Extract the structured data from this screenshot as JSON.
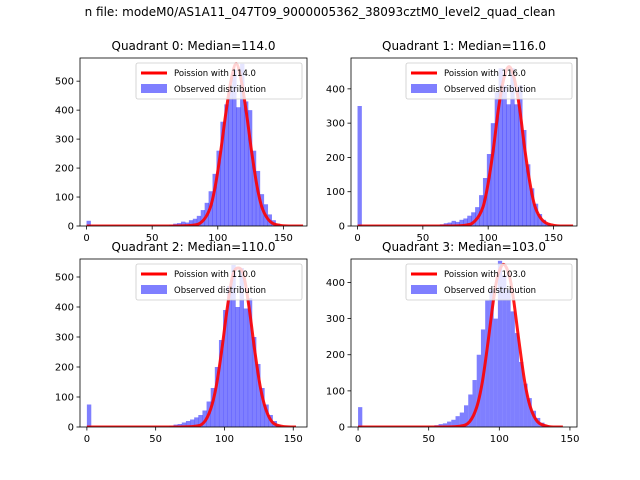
{
  "suptitle": "n file: modeM0/AS1A11_047T09_9000005362_38093cztM0_level2_quad_clean",
  "chart_data": [
    {
      "type": "bar",
      "title": "Quadrant 0: Median=114.0",
      "xlabel": "",
      "ylabel": "",
      "xlim": [
        -5,
        168
      ],
      "ylim": [
        0,
        580
      ],
      "xticks": [
        0,
        50,
        100,
        150
      ],
      "yticks": [
        0,
        100,
        200,
        300,
        400,
        500
      ],
      "grid": false,
      "legend_position": "top-right",
      "series": [
        {
          "name": "Poission with 114.0",
          "type": "line",
          "color": "#ff0000",
          "x": [
            0,
            60,
            80,
            88,
            94,
            98,
            102,
            106,
            110,
            114,
            118,
            122,
            126,
            130,
            134,
            140,
            148,
            160,
            165
          ],
          "values": [
            0,
            0,
            2,
            15,
            60,
            135,
            250,
            385,
            500,
            560,
            500,
            385,
            250,
            135,
            60,
            15,
            2,
            0,
            0
          ]
        },
        {
          "name": "Observed distribution",
          "type": "histogram",
          "color": "#0000ff",
          "alpha": 0.5,
          "bin_width": 3.3,
          "x": [
            0,
            63,
            66,
            69,
            72,
            75,
            78,
            81,
            84,
            87,
            90,
            93,
            96,
            99,
            102,
            105,
            108,
            111,
            114,
            117,
            120,
            123,
            126,
            129,
            132,
            135,
            138,
            141,
            144
          ],
          "values": [
            18,
            5,
            8,
            10,
            15,
            12,
            20,
            25,
            35,
            55,
            80,
            120,
            180,
            260,
            360,
            420,
            470,
            540,
            410,
            560,
            430,
            400,
            260,
            190,
            110,
            75,
            40,
            20,
            8
          ]
        }
      ]
    },
    {
      "type": "bar",
      "title": "Quadrant 1: Median=116.0",
      "xlabel": "",
      "ylabel": "",
      "xlim": [
        -5,
        168
      ],
      "ylim": [
        0,
        490
      ],
      "xticks": [
        0,
        50,
        100,
        150
      ],
      "yticks": [
        0,
        100,
        200,
        300,
        400
      ],
      "grid": false,
      "legend_position": "top-right",
      "series": [
        {
          "name": "Poission with 116.0",
          "type": "line",
          "color": "#ff0000",
          "x": [
            0,
            60,
            82,
            90,
            96,
            100,
            104,
            108,
            112,
            116,
            120,
            124,
            128,
            132,
            136,
            142,
            150,
            160,
            165
          ],
          "values": [
            0,
            0,
            2,
            15,
            55,
            125,
            225,
            345,
            430,
            465,
            430,
            345,
            225,
            125,
            55,
            15,
            2,
            0,
            0
          ]
        },
        {
          "name": "Observed distribution",
          "type": "histogram",
          "color": "#0000ff",
          "alpha": 0.5,
          "bin_width": 3.3,
          "x": [
            0,
            63,
            66,
            69,
            72,
            75,
            78,
            81,
            84,
            87,
            90,
            93,
            96,
            99,
            102,
            105,
            108,
            111,
            114,
            117,
            120,
            123,
            126,
            129,
            132,
            135,
            138,
            141,
            144
          ],
          "values": [
            350,
            5,
            8,
            10,
            15,
            12,
            18,
            22,
            30,
            40,
            55,
            90,
            140,
            210,
            300,
            390,
            460,
            410,
            355,
            460,
            355,
            410,
            280,
            180,
            110,
            65,
            35,
            18,
            8
          ]
        }
      ]
    },
    {
      "type": "bar",
      "title": "Quadrant 2: Median=110.0",
      "xlabel": "",
      "ylabel": "",
      "xlim": [
        -5,
        160
      ],
      "ylim": [
        0,
        560
      ],
      "xticks": [
        0,
        50,
        100,
        150
      ],
      "yticks": [
        0,
        100,
        200,
        300,
        400,
        500
      ],
      "grid": false,
      "legend_position": "top-right",
      "series": [
        {
          "name": "Poission with 110.0",
          "type": "line",
          "color": "#ff0000",
          "x": [
            0,
            60,
            78,
            85,
            90,
            94,
            98,
            102,
            106,
            110,
            114,
            118,
            122,
            126,
            130,
            135,
            142,
            150,
            152
          ],
          "values": [
            0,
            0,
            2,
            15,
            60,
            135,
            255,
            395,
            505,
            530,
            505,
            395,
            255,
            135,
            60,
            15,
            2,
            0,
            0
          ]
        },
        {
          "name": "Observed distribution",
          "type": "histogram",
          "color": "#0000ff",
          "alpha": 0.5,
          "bin_width": 3.2,
          "x": [
            0,
            60,
            63,
            66,
            69,
            72,
            75,
            78,
            81,
            84,
            87,
            90,
            93,
            96,
            99,
            102,
            105,
            108,
            111,
            114,
            117,
            120,
            123,
            126,
            129,
            132,
            135,
            138
          ],
          "values": [
            75,
            5,
            8,
            10,
            15,
            20,
            25,
            32,
            40,
            55,
            85,
            130,
            200,
            290,
            390,
            470,
            540,
            400,
            530,
            395,
            430,
            300,
            210,
            130,
            75,
            40,
            20,
            8
          ]
        }
      ]
    },
    {
      "type": "bar",
      "title": "Quadrant 3: Median=103.0",
      "xlabel": "",
      "ylabel": "",
      "xlim": [
        -5,
        155
      ],
      "ylim": [
        0,
        465
      ],
      "xticks": [
        0,
        50,
        100,
        150
      ],
      "yticks": [
        0,
        100,
        200,
        300,
        400
      ],
      "grid": false,
      "legend_position": "top-right",
      "series": [
        {
          "name": "Poission with 103.0",
          "type": "line",
          "color": "#ff0000",
          "x": [
            0,
            55,
            72,
            79,
            84,
            88,
            92,
            96,
            99,
            103,
            107,
            110,
            114,
            118,
            122,
            127,
            134,
            142,
            145
          ],
          "values": [
            0,
            0,
            2,
            15,
            55,
            125,
            235,
            355,
            420,
            450,
            420,
            355,
            235,
            125,
            55,
            15,
            2,
            0,
            0
          ]
        },
        {
          "name": "Observed distribution",
          "type": "histogram",
          "color": "#0000ff",
          "alpha": 0.5,
          "bin_width": 3.0,
          "x": [
            0,
            54,
            57,
            60,
            63,
            66,
            69,
            72,
            75,
            78,
            81,
            84,
            87,
            90,
            93,
            96,
            99,
            102,
            105,
            108,
            111,
            114,
            117,
            120,
            123,
            126,
            129,
            132
          ],
          "values": [
            55,
            5,
            8,
            10,
            15,
            20,
            30,
            40,
            60,
            90,
            130,
            200,
            270,
            350,
            380,
            300,
            460,
            420,
            380,
            320,
            260,
            180,
            120,
            80,
            45,
            25,
            12,
            5
          ]
        }
      ]
    }
  ]
}
